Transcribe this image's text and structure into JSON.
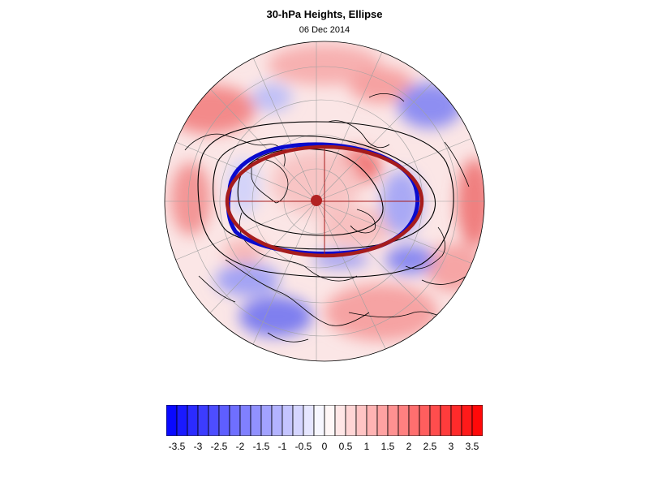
{
  "title": "30-hPa Heights, Ellipse",
  "subtitle": "06 Dec 2014",
  "colorbar": {
    "min": -3.75,
    "max": 3.75,
    "step": 0.25,
    "low_color": "#0000ff",
    "mid_color": "#ffffff",
    "high_color": "#ff0000",
    "tick_labels": [
      "-3.5",
      "-3",
      "-2.5",
      "-2",
      "-1.5",
      "-1",
      "-0.5",
      "0",
      "0.5",
      "1",
      "1.5",
      "2",
      "2.5",
      "3",
      "3.5"
    ]
  },
  "colors": {
    "ellipse_blue": "#0a0acd",
    "ellipse_red": "#a61c1c",
    "center_dot": "#b22222",
    "contour": "#000000",
    "coast": "#000000",
    "graticule": "#a0a0a0"
  }
}
